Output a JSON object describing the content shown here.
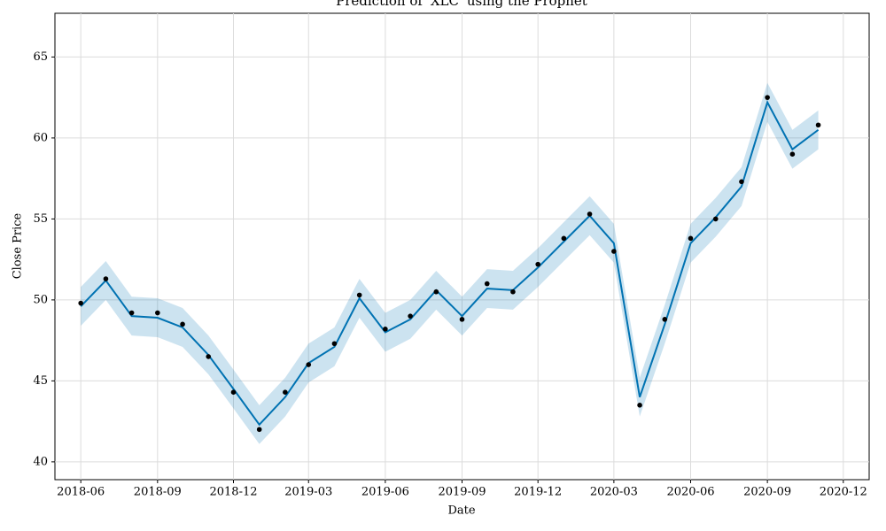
{
  "chart_data": {
    "type": "forecast",
    "title": "Prediction of 'XLC' using the Prophet",
    "x_label": "Date",
    "y_label": "Close Price",
    "x": [
      "2018-06",
      "2018-07",
      "2018-08",
      "2018-09",
      "2018-10",
      "2018-11",
      "2018-12",
      "2019-01",
      "2019-02",
      "2019-03",
      "2019-04",
      "2019-05",
      "2019-06",
      "2019-07",
      "2019-08",
      "2019-09",
      "2019-10",
      "2019-11",
      "2019-12",
      "2020-01",
      "2020-02",
      "2020-03",
      "2020-04",
      "2020-05",
      "2020-06",
      "2020-07",
      "2020-08",
      "2020-09",
      "2020-10",
      "2020-11"
    ],
    "observed": {
      "color": "#000000",
      "values": [
        49.8,
        51.3,
        49.2,
        49.2,
        48.5,
        46.5,
        44.3,
        42.0,
        44.3,
        46.0,
        47.3,
        50.3,
        48.2,
        49.0,
        50.5,
        48.8,
        51.0,
        50.5,
        52.2,
        53.8,
        55.3,
        53.0,
        43.5,
        48.8,
        53.8,
        55.0,
        57.3,
        62.5,
        59.0,
        60.8
      ]
    },
    "forecast": {
      "color": "#0072b2",
      "values": [
        49.6,
        51.2,
        49.0,
        48.9,
        48.3,
        46.6,
        44.5,
        42.3,
        44.0,
        46.1,
        47.1,
        50.1,
        48.0,
        48.8,
        50.6,
        49.0,
        50.7,
        50.6,
        52.0,
        53.6,
        55.2,
        53.5,
        44.0,
        48.5,
        53.5,
        55.1,
        57.0,
        62.2,
        59.3,
        60.5
      ]
    },
    "band": {
      "color": "#0072b2",
      "lower": [
        48.4,
        50.0,
        47.8,
        47.7,
        47.1,
        45.4,
        43.3,
        41.1,
        42.8,
        44.9,
        45.9,
        48.9,
        46.8,
        47.6,
        49.4,
        47.8,
        49.5,
        49.4,
        50.8,
        52.4,
        54.0,
        52.3,
        42.8,
        47.3,
        52.3,
        53.9,
        55.8,
        61.0,
        58.1,
        59.3
      ],
      "upper": [
        50.8,
        52.4,
        50.2,
        50.1,
        49.5,
        47.8,
        45.7,
        43.5,
        45.2,
        47.3,
        48.3,
        51.3,
        49.2,
        50.0,
        51.8,
        50.2,
        51.9,
        51.8,
        53.2,
        54.8,
        56.4,
        54.7,
        45.2,
        49.7,
        54.7,
        56.3,
        58.2,
        63.4,
        60.5,
        61.7
      ]
    },
    "xlim": [
      "2018-05",
      "2021-01"
    ],
    "xticks": [
      "2018-06",
      "2018-09",
      "2018-12",
      "2019-03",
      "2019-06",
      "2019-09",
      "2019-12",
      "2020-03",
      "2020-06",
      "2020-09",
      "2020-12"
    ],
    "ylim": [
      38.9,
      67.7
    ],
    "yticks": [
      40,
      45,
      50,
      55,
      60,
      65
    ],
    "grid": true
  }
}
